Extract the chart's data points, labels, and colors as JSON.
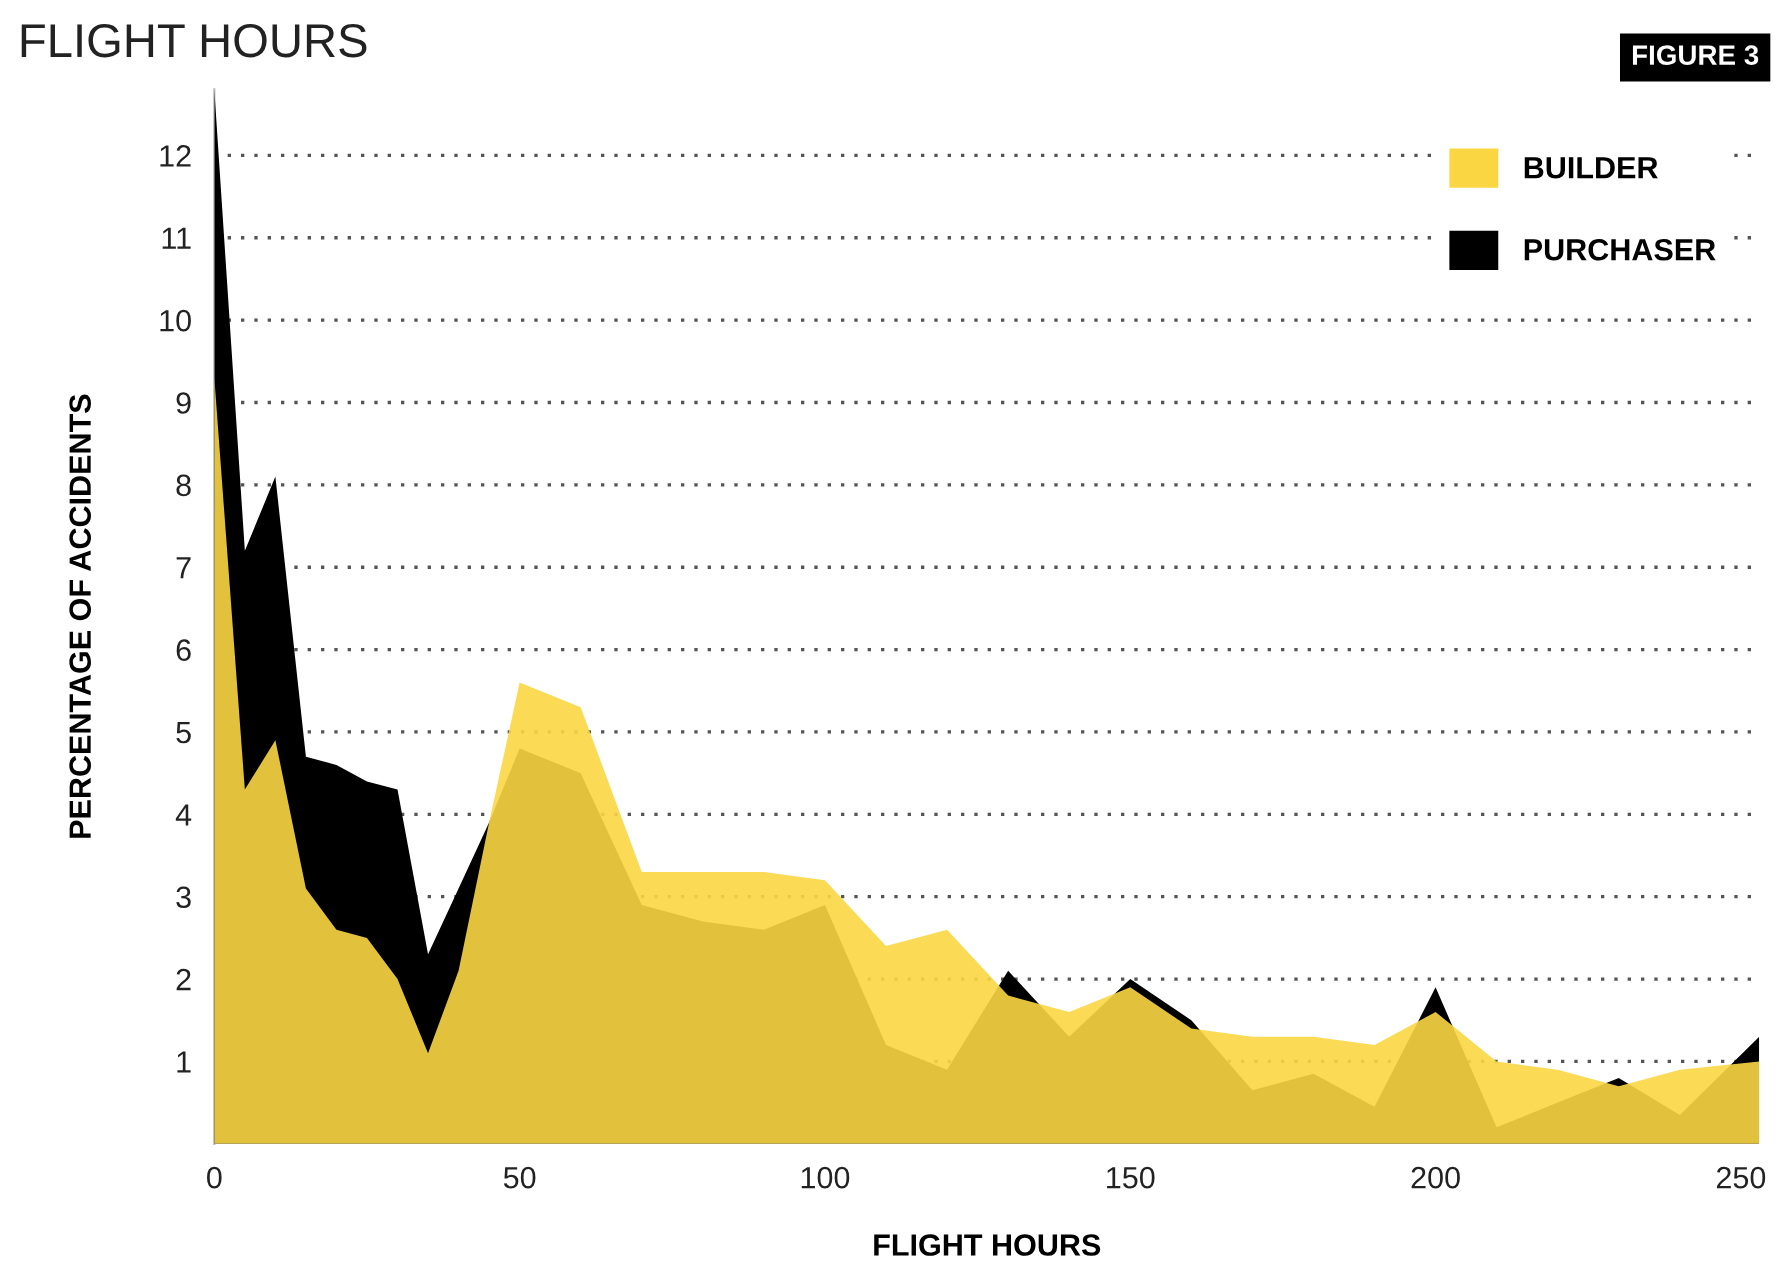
{
  "chart_data": {
    "type": "area",
    "title": "FLIGHT HOURS",
    "xlabel": "FLIGHT HOURS",
    "ylabel": "PERCENTAGE OF ACCIDENTS",
    "annotations": [
      "FIGURE 3"
    ],
    "x": [
      0,
      5,
      10,
      15,
      20,
      25,
      30,
      35,
      40,
      45,
      50,
      60,
      70,
      80,
      90,
      100,
      110,
      120,
      130,
      140,
      150,
      160,
      170,
      180,
      190,
      200,
      210,
      220,
      230,
      240,
      253
    ],
    "series": [
      {
        "name": "BUILDER",
        "color": "#fbd643",
        "values": [
          9.3,
          4.3,
          4.9,
          3.1,
          2.6,
          2.5,
          2.0,
          1.1,
          2.1,
          3.9,
          5.6,
          5.3,
          3.3,
          3.3,
          3.3,
          3.2,
          2.4,
          2.6,
          1.8,
          1.6,
          1.9,
          1.4,
          1.3,
          1.3,
          1.2,
          1.6,
          1.0,
          0.9,
          0.7,
          0.9,
          1.0
        ]
      },
      {
        "name": "PURCHASER",
        "color": "#000000",
        "values": [
          12.8,
          7.2,
          8.1,
          4.7,
          4.6,
          4.4,
          4.3,
          2.3,
          3.1,
          3.9,
          4.8,
          4.5,
          2.9,
          2.7,
          2.6,
          2.9,
          1.2,
          0.9,
          2.1,
          1.3,
          2.0,
          1.5,
          0.65,
          0.85,
          0.45,
          1.9,
          0.2,
          0.5,
          0.8,
          0.35,
          1.3
        ]
      }
    ],
    "xlim": [
      0,
      253
    ],
    "ylim": [
      0,
      12.8
    ],
    "xticks": [
      0,
      50,
      100,
      150,
      200,
      250
    ],
    "yticks": [
      1,
      2,
      3,
      4,
      5,
      6,
      7,
      8,
      9,
      10,
      11,
      12
    ],
    "grid": "y",
    "legend": "top right"
  }
}
